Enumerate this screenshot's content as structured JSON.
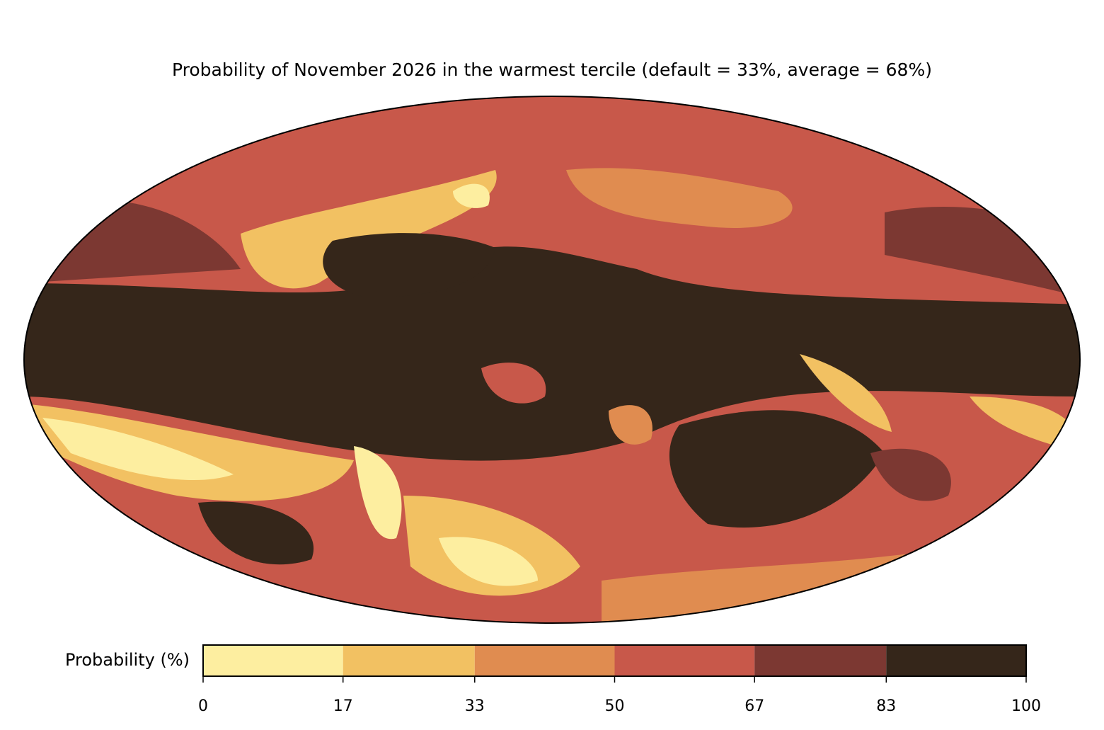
{
  "title": "Probability of November 2026 in the warmest tercile (default = 33%, average = 68%)",
  "colorbar": {
    "label": "Probability (%)",
    "lim": [
      0,
      100
    ],
    "ticks": [
      0,
      17,
      33,
      50,
      67,
      83,
      100
    ],
    "colors": [
      "#fdeea0",
      "#f2c162",
      "#e08c50",
      "#c8584a",
      "#7c3832",
      "#35261a"
    ]
  }
}
